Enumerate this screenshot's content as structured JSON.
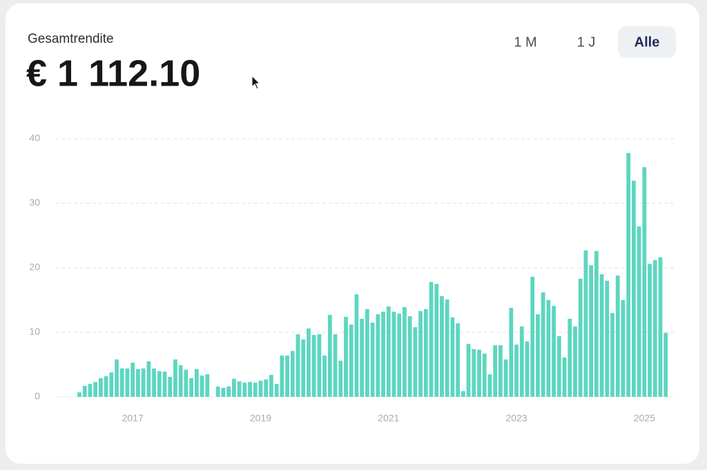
{
  "header": {
    "title": "Gesamtrendite",
    "amount": "€ 1 112.10"
  },
  "tabs": {
    "items": [
      "1 M",
      "1 J",
      "Alle"
    ],
    "active": 2
  },
  "chart_data": {
    "type": "bar",
    "color": "#5dd6c0",
    "grid": true,
    "ylim": [
      0,
      40
    ],
    "yticks": [
      0,
      10,
      20,
      30,
      40
    ],
    "categories": [
      null,
      null,
      null,
      null,
      null,
      null,
      null,
      null,
      null,
      null,
      "2017",
      null,
      null,
      null,
      null,
      null,
      null,
      null,
      null,
      null,
      null,
      null,
      null,
      null,
      null,
      null,
      null,
      null,
      null,
      null,
      null,
      null,
      null,
      null,
      "2019",
      null,
      null,
      null,
      null,
      null,
      null,
      null,
      null,
      null,
      null,
      null,
      null,
      null,
      null,
      null,
      null,
      null,
      null,
      null,
      null,
      null,
      null,
      null,
      "2021",
      null,
      null,
      null,
      null,
      null,
      null,
      null,
      null,
      null,
      null,
      null,
      null,
      null,
      null,
      null,
      null,
      null,
      null,
      null,
      null,
      null,
      null,
      null,
      "2023",
      null,
      null,
      null,
      null,
      null,
      null,
      null,
      null,
      null,
      null,
      null,
      null,
      null,
      null,
      null,
      null,
      null,
      null,
      null,
      null,
      null,
      null,
      null,
      "2025",
      null,
      null,
      null,
      null
    ],
    "values": [
      0.7,
      1.7,
      2.0,
      2.3,
      2.9,
      3.2,
      3.8,
      5.8,
      4.4,
      4.4,
      5.3,
      4.3,
      4.4,
      5.5,
      4.4,
      4.0,
      3.9,
      3.1,
      5.8,
      4.9,
      4.2,
      2.9,
      4.3,
      3.3,
      3.5,
      null,
      1.6,
      1.4,
      1.6,
      2.8,
      2.4,
      2.2,
      2.3,
      2.2,
      2.5,
      2.7,
      3.4,
      2.0,
      6.4,
      6.4,
      7.1,
      9.7,
      8.9,
      10.6,
      9.6,
      9.7,
      6.4,
      12.7,
      9.7,
      5.6,
      12.4,
      11.2,
      15.9,
      12.1,
      13.6,
      11.5,
      12.8,
      13.2,
      14.0,
      13.2,
      12.9,
      13.9,
      12.5,
      10.8,
      13.3,
      13.6,
      17.8,
      17.5,
      15.6,
      15.1,
      12.3,
      11.4,
      0.9,
      8.2,
      7.4,
      7.3,
      6.7,
      3.5,
      8.0,
      8.0,
      5.8,
      13.8,
      8.1,
      10.9,
      8.6,
      18.6,
      12.8,
      16.2,
      15.0,
      14.1,
      9.4,
      6.1,
      12.1,
      10.9,
      18.3,
      22.7,
      20.4,
      22.6,
      19.0,
      18.0,
      13.0,
      18.8,
      15.0,
      37.8,
      33.5,
      26.4,
      35.6,
      20.6,
      21.2,
      21.6,
      9.9
    ]
  }
}
